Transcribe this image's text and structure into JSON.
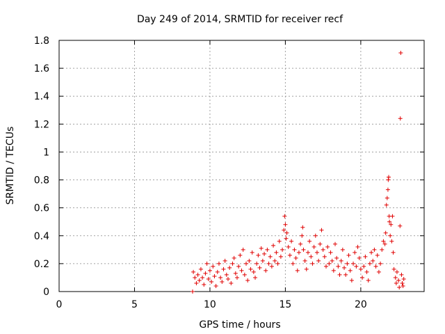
{
  "chart_data": {
    "type": "scatter",
    "title": "Day 249 of 2014, SRMTID for receiver recf",
    "xlabel": "GPS time / hours",
    "ylabel": "SRMTID / TECUs",
    "xlim": [
      0,
      24.2
    ],
    "ylim": [
      0,
      1.8
    ],
    "x_ticks": [
      0,
      5,
      10,
      15,
      20
    ],
    "x_tick_labels": [
      "0",
      "5",
      "10",
      "15",
      "20"
    ],
    "y_ticks": [
      0,
      0.2,
      0.4,
      0.6,
      0.8,
      1,
      1.2,
      1.4,
      1.6,
      1.8
    ],
    "y_tick_labels": [
      "0",
      "0.2",
      "0.4",
      "0.6",
      "0.8",
      "1",
      "1.2",
      "1.4",
      "1.6",
      "1.8"
    ],
    "grid": true,
    "marker": "+",
    "marker_color": "#e00000",
    "series": [
      {
        "name": "SRMTID",
        "points": [
          [
            8.85,
            0.0
          ],
          [
            8.9,
            0.14
          ],
          [
            9.0,
            0.1
          ],
          [
            9.1,
            0.06
          ],
          [
            9.2,
            0.12
          ],
          [
            9.3,
            0.08
          ],
          [
            9.4,
            0.16
          ],
          [
            9.5,
            0.1
          ],
          [
            9.6,
            0.05
          ],
          [
            9.7,
            0.13
          ],
          [
            9.8,
            0.2
          ],
          [
            9.9,
            0.09
          ],
          [
            10.0,
            0.15
          ],
          [
            10.1,
            0.07
          ],
          [
            10.2,
            0.18
          ],
          [
            10.3,
            0.11
          ],
          [
            10.4,
            0.04
          ],
          [
            10.5,
            0.14
          ],
          [
            10.6,
            0.2
          ],
          [
            10.7,
            0.1
          ],
          [
            10.8,
            0.07
          ],
          [
            10.9,
            0.16
          ],
          [
            11.0,
            0.22
          ],
          [
            11.1,
            0.12
          ],
          [
            11.2,
            0.09
          ],
          [
            11.3,
            0.17
          ],
          [
            11.4,
            0.06
          ],
          [
            11.5,
            0.2
          ],
          [
            11.6,
            0.24
          ],
          [
            11.7,
            0.13
          ],
          [
            11.8,
            0.1
          ],
          [
            11.9,
            0.18
          ],
          [
            12.0,
            0.26
          ],
          [
            12.1,
            0.15
          ],
          [
            12.2,
            0.3
          ],
          [
            12.3,
            0.12
          ],
          [
            12.4,
            0.2
          ],
          [
            12.5,
            0.08
          ],
          [
            12.6,
            0.22
          ],
          [
            12.7,
            0.16
          ],
          [
            12.8,
            0.28
          ],
          [
            12.9,
            0.14
          ],
          [
            13.0,
            0.1
          ],
          [
            13.1,
            0.2
          ],
          [
            13.2,
            0.26
          ],
          [
            13.3,
            0.17
          ],
          [
            13.4,
            0.31
          ],
          [
            13.5,
            0.22
          ],
          [
            13.6,
            0.27
          ],
          [
            13.7,
            0.15
          ],
          [
            13.8,
            0.3
          ],
          [
            13.9,
            0.2
          ],
          [
            14.0,
            0.25
          ],
          [
            14.1,
            0.18
          ],
          [
            14.2,
            0.33
          ],
          [
            14.3,
            0.22
          ],
          [
            14.4,
            0.28
          ],
          [
            14.5,
            0.2
          ],
          [
            14.6,
            0.36
          ],
          [
            14.7,
            0.25
          ],
          [
            14.8,
            0.3
          ],
          [
            14.9,
            0.44
          ],
          [
            14.95,
            0.54
          ],
          [
            15.0,
            0.48
          ],
          [
            15.05,
            0.38
          ],
          [
            15.1,
            0.42
          ],
          [
            15.2,
            0.32
          ],
          [
            15.3,
            0.26
          ],
          [
            15.4,
            0.36
          ],
          [
            15.5,
            0.2
          ],
          [
            15.6,
            0.3
          ],
          [
            15.7,
            0.24
          ],
          [
            15.8,
            0.15
          ],
          [
            15.9,
            0.28
          ],
          [
            16.0,
            0.34
          ],
          [
            16.1,
            0.4
          ],
          [
            16.15,
            0.46
          ],
          [
            16.2,
            0.3
          ],
          [
            16.3,
            0.22
          ],
          [
            16.4,
            0.16
          ],
          [
            16.5,
            0.28
          ],
          [
            16.6,
            0.36
          ],
          [
            16.7,
            0.25
          ],
          [
            16.8,
            0.2
          ],
          [
            16.9,
            0.32
          ],
          [
            17.0,
            0.4
          ],
          [
            17.1,
            0.28
          ],
          [
            17.2,
            0.22
          ],
          [
            17.3,
            0.34
          ],
          [
            17.4,
            0.44
          ],
          [
            17.5,
            0.3
          ],
          [
            17.6,
            0.25
          ],
          [
            17.7,
            0.18
          ],
          [
            17.8,
            0.32
          ],
          [
            17.9,
            0.2
          ],
          [
            18.0,
            0.28
          ],
          [
            18.1,
            0.22
          ],
          [
            18.2,
            0.15
          ],
          [
            18.3,
            0.34
          ],
          [
            18.4,
            0.24
          ],
          [
            18.5,
            0.18
          ],
          [
            18.6,
            0.12
          ],
          [
            18.7,
            0.22
          ],
          [
            18.8,
            0.3
          ],
          [
            18.9,
            0.17
          ],
          [
            19.0,
            0.12
          ],
          [
            19.1,
            0.2
          ],
          [
            19.2,
            0.26
          ],
          [
            19.3,
            0.15
          ],
          [
            19.4,
            0.08
          ],
          [
            19.5,
            0.2
          ],
          [
            19.6,
            0.28
          ],
          [
            19.7,
            0.18
          ],
          [
            19.8,
            0.32
          ],
          [
            19.9,
            0.24
          ],
          [
            20.0,
            0.16
          ],
          [
            20.1,
            0.1
          ],
          [
            20.2,
            0.18
          ],
          [
            20.3,
            0.25
          ],
          [
            20.4,
            0.14
          ],
          [
            20.5,
            0.08
          ],
          [
            20.6,
            0.2
          ],
          [
            20.7,
            0.28
          ],
          [
            20.8,
            0.22
          ],
          [
            20.9,
            0.3
          ],
          [
            21.0,
            0.18
          ],
          [
            21.1,
            0.26
          ],
          [
            21.2,
            0.14
          ],
          [
            21.3,
            0.2
          ],
          [
            21.4,
            0.3
          ],
          [
            21.5,
            0.36
          ],
          [
            21.6,
            0.34
          ],
          [
            21.65,
            0.42
          ],
          [
            21.7,
            0.62
          ],
          [
            21.75,
            0.67
          ],
          [
            21.8,
            0.73
          ],
          [
            21.82,
            0.8
          ],
          [
            21.85,
            0.82
          ],
          [
            21.88,
            0.54
          ],
          [
            21.9,
            0.5
          ],
          [
            21.95,
            0.4
          ],
          [
            22.0,
            0.48
          ],
          [
            22.05,
            0.36
          ],
          [
            22.1,
            0.54
          ],
          [
            22.15,
            0.28
          ],
          [
            22.2,
            0.16
          ],
          [
            22.3,
            0.1
          ],
          [
            22.35,
            0.06
          ],
          [
            22.4,
            0.14
          ],
          [
            22.5,
            0.08
          ],
          [
            22.55,
            0.03
          ],
          [
            22.6,
            0.47
          ],
          [
            22.62,
            1.24
          ],
          [
            22.65,
            1.71
          ],
          [
            22.7,
            0.12
          ],
          [
            22.75,
            0.06
          ],
          [
            22.8,
            0.04
          ],
          [
            22.85,
            0.09
          ]
        ]
      }
    ]
  }
}
